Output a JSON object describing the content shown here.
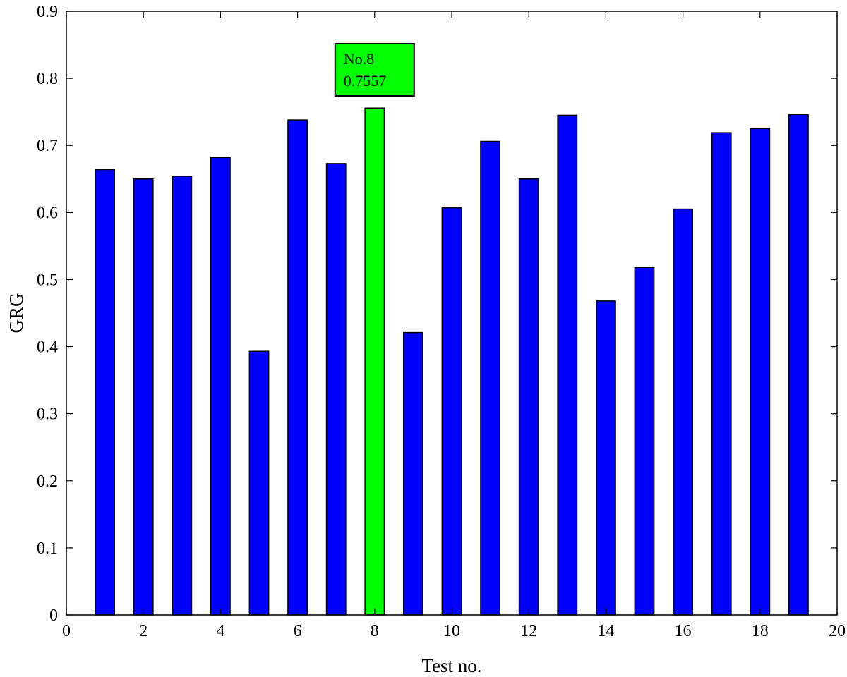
{
  "chart_data": {
    "type": "bar",
    "x": [
      1,
      2,
      3,
      4,
      5,
      6,
      7,
      8,
      9,
      10,
      11,
      12,
      13,
      14,
      15,
      16,
      17,
      18,
      19
    ],
    "values": [
      0.664,
      0.65,
      0.654,
      0.682,
      0.393,
      0.738,
      0.673,
      0.7557,
      0.421,
      0.607,
      0.706,
      0.65,
      0.745,
      0.468,
      0.518,
      0.605,
      0.719,
      0.725,
      0.746
    ],
    "xlabel": "Test no.",
    "ylabel": "GRG",
    "xlim": [
      0,
      20
    ],
    "ylim": [
      0,
      0.9
    ],
    "xticks": [
      "0",
      "2",
      "4",
      "6",
      "8",
      "10",
      "12",
      "14",
      "16",
      "18",
      "20"
    ],
    "yticks": [
      "0",
      "0.1",
      "0.2",
      "0.3",
      "0.4",
      "0.5",
      "0.6",
      "0.7",
      "0.8",
      "0.9"
    ],
    "grid": false,
    "highlight_index": 7,
    "colors": {
      "bar": "#0000ff",
      "highlight": "#00ff00",
      "annotation_fill": "#00ff00"
    },
    "annotation": {
      "line1": "No.8",
      "line2": "0.7557",
      "x": 8,
      "y": 0.7557
    }
  }
}
